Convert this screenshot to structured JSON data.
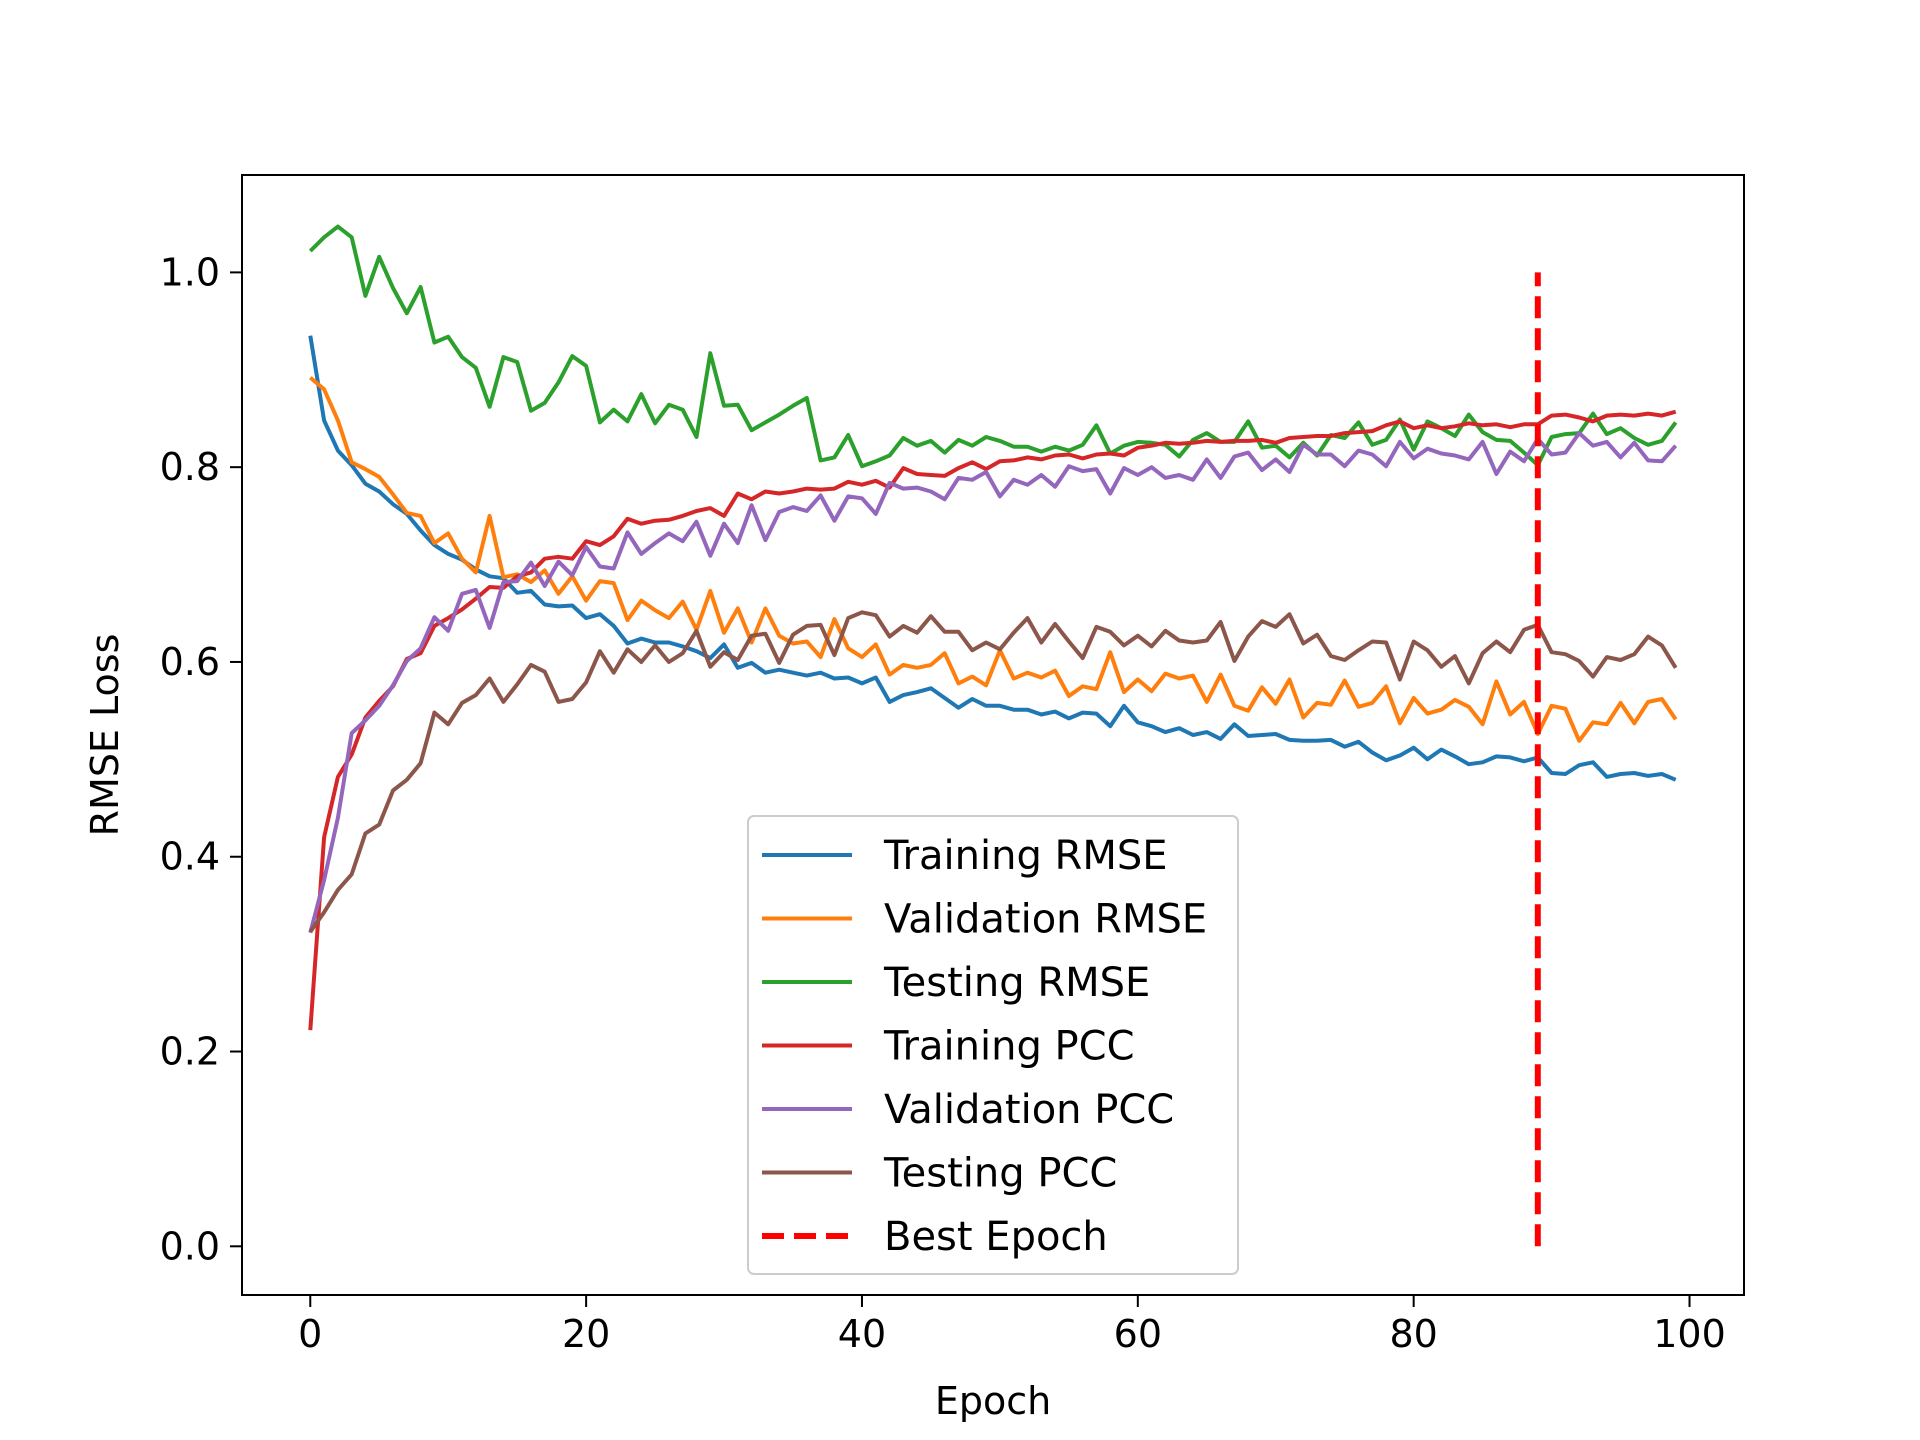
{
  "chart_data": {
    "type": "line",
    "title": "",
    "xlabel": "Epoch",
    "ylabel": "RMSE Loss",
    "xlim": [
      -4.95,
      103.95
    ],
    "ylim": [
      -0.05,
      1.1
    ],
    "xticks": [
      "0",
      "20",
      "40",
      "60",
      "80",
      "100"
    ],
    "xtick_values": [
      0,
      20,
      40,
      60,
      80,
      100
    ],
    "yticks": [
      "0.0",
      "0.2",
      "0.4",
      "0.6",
      "0.8",
      "1.0"
    ],
    "ytick_values": [
      0.0,
      0.2,
      0.4,
      0.6,
      0.8,
      1.0
    ],
    "grid": false,
    "legend_position": "lower-center",
    "x": [
      0,
      1,
      2,
      3,
      4,
      5,
      6,
      7,
      8,
      9,
      10,
      11,
      12,
      13,
      14,
      15,
      16,
      17,
      18,
      19,
      20,
      21,
      22,
      23,
      24,
      25,
      26,
      27,
      28,
      29,
      30,
      31,
      32,
      33,
      34,
      35,
      36,
      37,
      38,
      39,
      40,
      41,
      42,
      43,
      44,
      45,
      46,
      47,
      48,
      49,
      50,
      51,
      52,
      53,
      54,
      55,
      56,
      57,
      58,
      59,
      60,
      61,
      62,
      63,
      64,
      65,
      66,
      67,
      68,
      69,
      70,
      71,
      72,
      73,
      74,
      75,
      76,
      77,
      78,
      79,
      80,
      81,
      82,
      83,
      84,
      85,
      86,
      87,
      88,
      89,
      90,
      91,
      92,
      93,
      94,
      95,
      96,
      97,
      98,
      99
    ],
    "series": [
      {
        "name": "Training RMSE",
        "color": "#1f77b4",
        "values": [
          0.935,
          0.848,
          0.817,
          0.802,
          0.783,
          0.775,
          0.762,
          0.752,
          0.735,
          0.72,
          0.711,
          0.705,
          0.695,
          0.688,
          0.686,
          0.671,
          0.673,
          0.659,
          0.657,
          0.658,
          0.645,
          0.649,
          0.637,
          0.619,
          0.624,
          0.62,
          0.62,
          0.616,
          0.611,
          0.604,
          0.618,
          0.594,
          0.599,
          0.589,
          0.592,
          0.589,
          0.586,
          0.589,
          0.583,
          0.584,
          0.578,
          0.584,
          0.559,
          0.566,
          0.569,
          0.573,
          0.563,
          0.553,
          0.562,
          0.555,
          0.555,
          0.551,
          0.551,
          0.546,
          0.549,
          0.542,
          0.548,
          0.547,
          0.534,
          0.555,
          0.538,
          0.534,
          0.528,
          0.532,
          0.525,
          0.528,
          0.521,
          0.536,
          0.524,
          0.525,
          0.526,
          0.52,
          0.519,
          0.519,
          0.52,
          0.513,
          0.518,
          0.507,
          0.499,
          0.504,
          0.512,
          0.5,
          0.51,
          0.503,
          0.495,
          0.497,
          0.503,
          0.502,
          0.498,
          0.502,
          0.486,
          0.485,
          0.494,
          0.497,
          0.482,
          0.485,
          0.486,
          0.483,
          0.485,
          0.479
        ]
      },
      {
        "name": "Validation RMSE",
        "color": "#ff7f0e",
        "values": [
          0.892,
          0.88,
          0.848,
          0.805,
          0.798,
          0.79,
          0.772,
          0.753,
          0.75,
          0.722,
          0.732,
          0.706,
          0.692,
          0.75,
          0.687,
          0.69,
          0.682,
          0.694,
          0.67,
          0.688,
          0.663,
          0.683,
          0.681,
          0.643,
          0.663,
          0.653,
          0.645,
          0.662,
          0.633,
          0.673,
          0.63,
          0.655,
          0.62,
          0.655,
          0.627,
          0.619,
          0.621,
          0.605,
          0.644,
          0.614,
          0.605,
          0.618,
          0.587,
          0.597,
          0.594,
          0.597,
          0.609,
          0.578,
          0.585,
          0.576,
          0.612,
          0.583,
          0.589,
          0.584,
          0.591,
          0.565,
          0.575,
          0.572,
          0.61,
          0.569,
          0.582,
          0.57,
          0.588,
          0.583,
          0.586,
          0.559,
          0.587,
          0.555,
          0.55,
          0.574,
          0.557,
          0.582,
          0.543,
          0.558,
          0.556,
          0.581,
          0.554,
          0.558,
          0.575,
          0.537,
          0.563,
          0.547,
          0.551,
          0.561,
          0.554,
          0.536,
          0.58,
          0.546,
          0.559,
          0.526,
          0.555,
          0.552,
          0.519,
          0.538,
          0.536,
          0.558,
          0.537,
          0.559,
          0.562,
          0.541
        ]
      },
      {
        "name": "Testing RMSE",
        "color": "#2ca02c",
        "values": [
          1.022,
          1.036,
          1.047,
          1.036,
          0.976,
          1.016,
          0.984,
          0.958,
          0.985,
          0.928,
          0.934,
          0.913,
          0.902,
          0.862,
          0.913,
          0.908,
          0.858,
          0.866,
          0.887,
          0.914,
          0.904,
          0.846,
          0.859,
          0.847,
          0.875,
          0.845,
          0.864,
          0.859,
          0.831,
          0.917,
          0.863,
          0.864,
          0.838,
          0.846,
          0.854,
          0.863,
          0.871,
          0.807,
          0.81,
          0.833,
          0.801,
          0.806,
          0.812,
          0.83,
          0.822,
          0.827,
          0.815,
          0.828,
          0.822,
          0.831,
          0.827,
          0.821,
          0.821,
          0.816,
          0.821,
          0.817,
          0.823,
          0.843,
          0.814,
          0.822,
          0.826,
          0.825,
          0.823,
          0.811,
          0.828,
          0.835,
          0.826,
          0.826,
          0.847,
          0.82,
          0.822,
          0.81,
          0.825,
          0.812,
          0.833,
          0.83,
          0.846,
          0.823,
          0.828,
          0.849,
          0.818,
          0.847,
          0.84,
          0.832,
          0.854,
          0.836,
          0.828,
          0.827,
          0.815,
          0.802,
          0.831,
          0.834,
          0.835,
          0.855,
          0.834,
          0.84,
          0.83,
          0.823,
          0.827,
          0.846
        ]
      },
      {
        "name": "Training PCC",
        "color": "#d62728",
        "values": [
          0.222,
          0.42,
          0.482,
          0.505,
          0.543,
          0.56,
          0.575,
          0.603,
          0.609,
          0.637,
          0.645,
          0.654,
          0.665,
          0.677,
          0.676,
          0.688,
          0.692,
          0.706,
          0.708,
          0.706,
          0.724,
          0.72,
          0.729,
          0.747,
          0.742,
          0.745,
          0.746,
          0.75,
          0.755,
          0.758,
          0.75,
          0.773,
          0.767,
          0.775,
          0.773,
          0.775,
          0.778,
          0.777,
          0.778,
          0.785,
          0.782,
          0.786,
          0.779,
          0.799,
          0.793,
          0.792,
          0.791,
          0.799,
          0.805,
          0.798,
          0.806,
          0.807,
          0.81,
          0.808,
          0.812,
          0.813,
          0.809,
          0.813,
          0.814,
          0.812,
          0.82,
          0.822,
          0.825,
          0.824,
          0.825,
          0.827,
          0.826,
          0.827,
          0.827,
          0.828,
          0.825,
          0.83,
          0.831,
          0.832,
          0.832,
          0.835,
          0.836,
          0.837,
          0.843,
          0.847,
          0.84,
          0.843,
          0.84,
          0.842,
          0.845,
          0.843,
          0.844,
          0.841,
          0.844,
          0.844,
          0.853,
          0.854,
          0.851,
          0.847,
          0.853,
          0.854,
          0.853,
          0.855,
          0.853,
          0.857
        ]
      },
      {
        "name": "Validation PCC",
        "color": "#9467bd",
        "values": [
          0.322,
          0.376,
          0.44,
          0.527,
          0.54,
          0.555,
          0.576,
          0.601,
          0.614,
          0.646,
          0.632,
          0.67,
          0.674,
          0.635,
          0.682,
          0.683,
          0.702,
          0.678,
          0.703,
          0.689,
          0.718,
          0.698,
          0.696,
          0.733,
          0.711,
          0.722,
          0.732,
          0.724,
          0.744,
          0.709,
          0.742,
          0.722,
          0.761,
          0.725,
          0.754,
          0.759,
          0.755,
          0.771,
          0.745,
          0.77,
          0.768,
          0.752,
          0.784,
          0.778,
          0.779,
          0.775,
          0.767,
          0.789,
          0.787,
          0.795,
          0.77,
          0.787,
          0.782,
          0.792,
          0.78,
          0.801,
          0.796,
          0.798,
          0.773,
          0.799,
          0.792,
          0.8,
          0.789,
          0.792,
          0.787,
          0.808,
          0.789,
          0.811,
          0.815,
          0.797,
          0.808,
          0.795,
          0.823,
          0.813,
          0.813,
          0.801,
          0.817,
          0.813,
          0.801,
          0.826,
          0.809,
          0.819,
          0.814,
          0.812,
          0.808,
          0.826,
          0.793,
          0.816,
          0.806,
          0.829,
          0.813,
          0.815,
          0.835,
          0.822,
          0.826,
          0.81,
          0.825,
          0.807,
          0.806,
          0.822
        ]
      },
      {
        "name": "Testing PCC",
        "color": "#8c564b",
        "values": [
          0.323,
          0.343,
          0.366,
          0.382,
          0.424,
          0.433,
          0.468,
          0.479,
          0.496,
          0.548,
          0.536,
          0.558,
          0.566,
          0.583,
          0.559,
          0.577,
          0.597,
          0.59,
          0.559,
          0.562,
          0.579,
          0.611,
          0.589,
          0.613,
          0.6,
          0.617,
          0.6,
          0.609,
          0.632,
          0.595,
          0.61,
          0.602,
          0.627,
          0.629,
          0.599,
          0.628,
          0.637,
          0.638,
          0.607,
          0.645,
          0.651,
          0.648,
          0.626,
          0.637,
          0.63,
          0.647,
          0.631,
          0.631,
          0.612,
          0.62,
          0.613,
          0.63,
          0.645,
          0.62,
          0.639,
          0.621,
          0.604,
          0.636,
          0.631,
          0.617,
          0.627,
          0.616,
          0.632,
          0.622,
          0.62,
          0.622,
          0.641,
          0.601,
          0.626,
          0.642,
          0.636,
          0.649,
          0.619,
          0.628,
          0.606,
          0.602,
          0.612,
          0.621,
          0.62,
          0.582,
          0.621,
          0.612,
          0.595,
          0.606,
          0.578,
          0.609,
          0.621,
          0.61,
          0.633,
          0.638,
          0.61,
          0.608,
          0.601,
          0.585,
          0.605,
          0.602,
          0.608,
          0.626,
          0.617,
          0.594
        ]
      },
      {
        "name": "Best Epoch",
        "color": "#ff0000",
        "style": "dashed",
        "x": [
          89,
          89
        ],
        "values": [
          0.0,
          1.0
        ]
      }
    ]
  }
}
